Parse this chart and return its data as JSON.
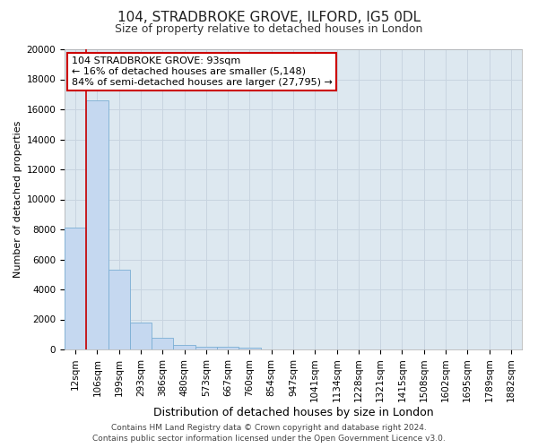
{
  "title": "104, STRADBROKE GROVE, ILFORD, IG5 0DL",
  "subtitle": "Size of property relative to detached houses in London",
  "xlabel": "Distribution of detached houses by size in London",
  "ylabel": "Number of detached properties",
  "footer_line1": "Contains HM Land Registry data © Crown copyright and database right 2024.",
  "footer_line2": "Contains public sector information licensed under the Open Government Licence v3.0.",
  "bin_labels": [
    "12sqm",
    "106sqm",
    "199sqm",
    "293sqm",
    "386sqm",
    "480sqm",
    "573sqm",
    "667sqm",
    "760sqm",
    "854sqm",
    "947sqm",
    "1041sqm",
    "1134sqm",
    "1228sqm",
    "1321sqm",
    "1415sqm",
    "1508sqm",
    "1602sqm",
    "1695sqm",
    "1789sqm",
    "1882sqm"
  ],
  "bar_heights": [
    8100,
    16600,
    5300,
    1800,
    750,
    290,
    200,
    160,
    130,
    0,
    0,
    0,
    0,
    0,
    0,
    0,
    0,
    0,
    0,
    0,
    0
  ],
  "bar_color": "#c5d8f0",
  "bar_edge_color": "#7bafd4",
  "property_line_color": "#cc0000",
  "annotation_title": "104 STRADBROKE GROVE: 93sqm",
  "annotation_line1": "← 16% of detached houses are smaller (5,148)",
  "annotation_line2": "84% of semi-detached houses are larger (27,795) →",
  "annotation_box_facecolor": "#ffffff",
  "annotation_box_edgecolor": "#cc0000",
  "ylim": [
    0,
    20000
  ],
  "yticks": [
    0,
    2000,
    4000,
    6000,
    8000,
    10000,
    12000,
    14000,
    16000,
    18000,
    20000
  ],
  "grid_color": "#c8d4e0",
  "background_color": "#dde8f0",
  "fig_background": "#ffffff",
  "title_fontsize": 11,
  "subtitle_fontsize": 9,
  "ylabel_fontsize": 8,
  "xlabel_fontsize": 9,
  "tick_fontsize": 7.5,
  "footer_fontsize": 6.5
}
